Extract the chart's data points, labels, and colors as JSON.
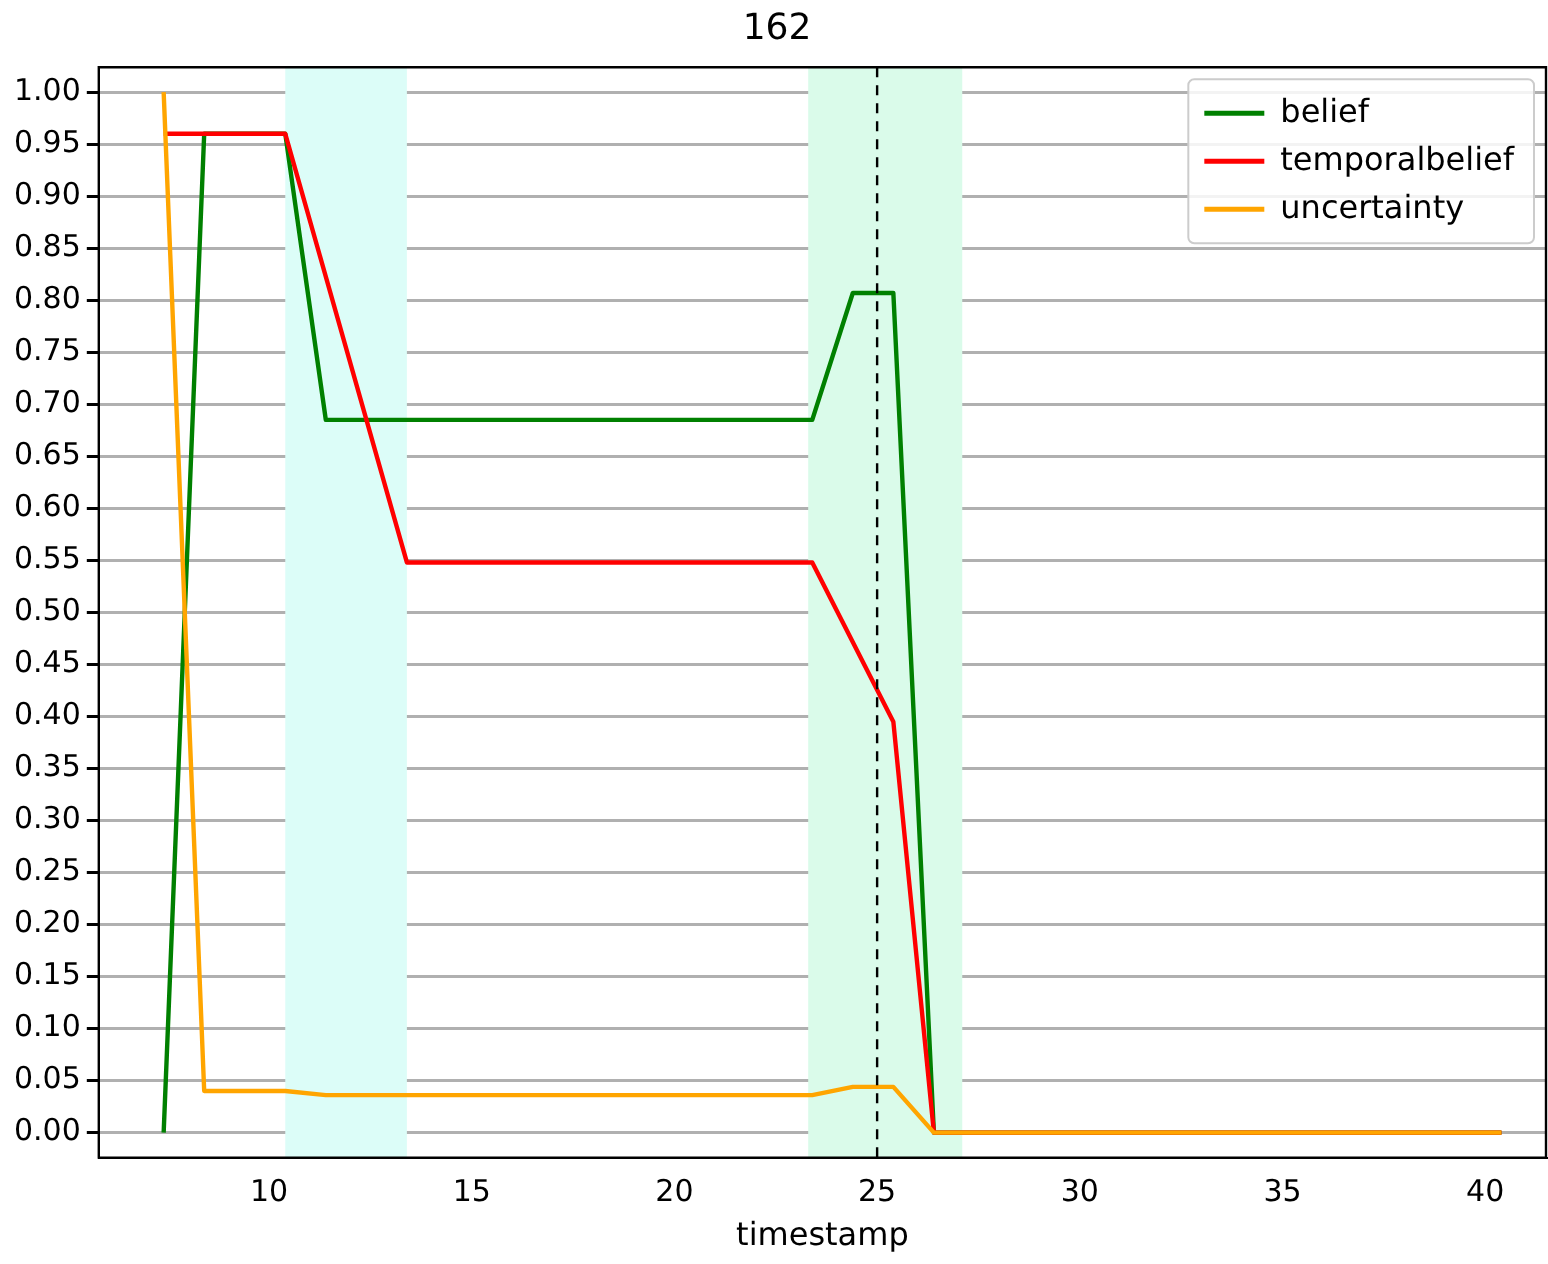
{
  "chart_data": {
    "type": "line",
    "title": "162",
    "xlabel": "timestamp",
    "xlim": [
      5.8,
      41.5
    ],
    "xticks": [
      10,
      15,
      20,
      25,
      30,
      35,
      40
    ],
    "ylim": [
      -0.024,
      1.024
    ],
    "yticks": [
      {
        "value": 0,
        "label": "0.00"
      },
      {
        "value": 0.05,
        "label": "0.05"
      },
      {
        "value": 0.1,
        "label": "0.10"
      },
      {
        "value": 0.15,
        "label": "0.15"
      },
      {
        "value": 0.2,
        "label": "0.20"
      },
      {
        "value": 0.25,
        "label": "0.25"
      },
      {
        "value": 0.3,
        "label": "0.30"
      },
      {
        "value": 0.35,
        "label": "0.35"
      },
      {
        "value": 0.4,
        "label": "0.40"
      },
      {
        "value": 0.45,
        "label": "0.45"
      },
      {
        "value": 0.5,
        "label": "0.50"
      },
      {
        "value": 0.55,
        "label": "0.55"
      },
      {
        "value": 0.6,
        "label": "0.60"
      },
      {
        "value": 0.65,
        "label": "0.65"
      },
      {
        "value": 0.7,
        "label": "0.70"
      },
      {
        "value": 0.75,
        "label": "0.75"
      },
      {
        "value": 0.8,
        "label": "0.80"
      },
      {
        "value": 0.85,
        "label": "0.85"
      },
      {
        "value": 0.9,
        "label": "0.90"
      },
      {
        "value": 0.95,
        "label": "0.95"
      },
      {
        "value": 1,
        "label": "1.00"
      }
    ],
    "grid": "y",
    "legend": "top right",
    "marker": "none",
    "series": [
      {
        "name": "belief",
        "color": "#008000",
        "x": [
          7.4,
          8.4,
          10.4,
          11.4,
          23.4,
          24.4,
          25.4,
          26.4,
          40.4
        ],
        "values": [
          0,
          0.96,
          0.96,
          0.685,
          0.685,
          0.807,
          0.807,
          0,
          0
        ]
      },
      {
        "name": "temporalbelief",
        "color": "#ff0000",
        "x": [
          7.4,
          10.4,
          13.4,
          23.4,
          25.4,
          26.4,
          40.4
        ],
        "values": [
          0.96,
          0.96,
          0.548,
          0.548,
          0.395,
          0,
          0
        ]
      },
      {
        "name": "uncertainty",
        "color": "#ffa500",
        "x": [
          7.4,
          8.4,
          10.4,
          11.4,
          23.4,
          24.4,
          25.4,
          26.4,
          40.4
        ],
        "values": [
          1.0,
          0.04,
          0.04,
          0.036,
          0.036,
          0.044,
          0.044,
          0,
          0
        ]
      }
    ],
    "bands": [
      {
        "axis": "x",
        "from": 10.4,
        "to": 13.4,
        "color": "#dcfdf8"
      },
      {
        "axis": "x",
        "from": 23.3,
        "to": 27.1,
        "color": "#dafbea"
      }
    ],
    "ref_lines": [
      {
        "axis": "x",
        "value": 25.0,
        "color": "#000000",
        "line_style": "dashed"
      }
    ]
  }
}
